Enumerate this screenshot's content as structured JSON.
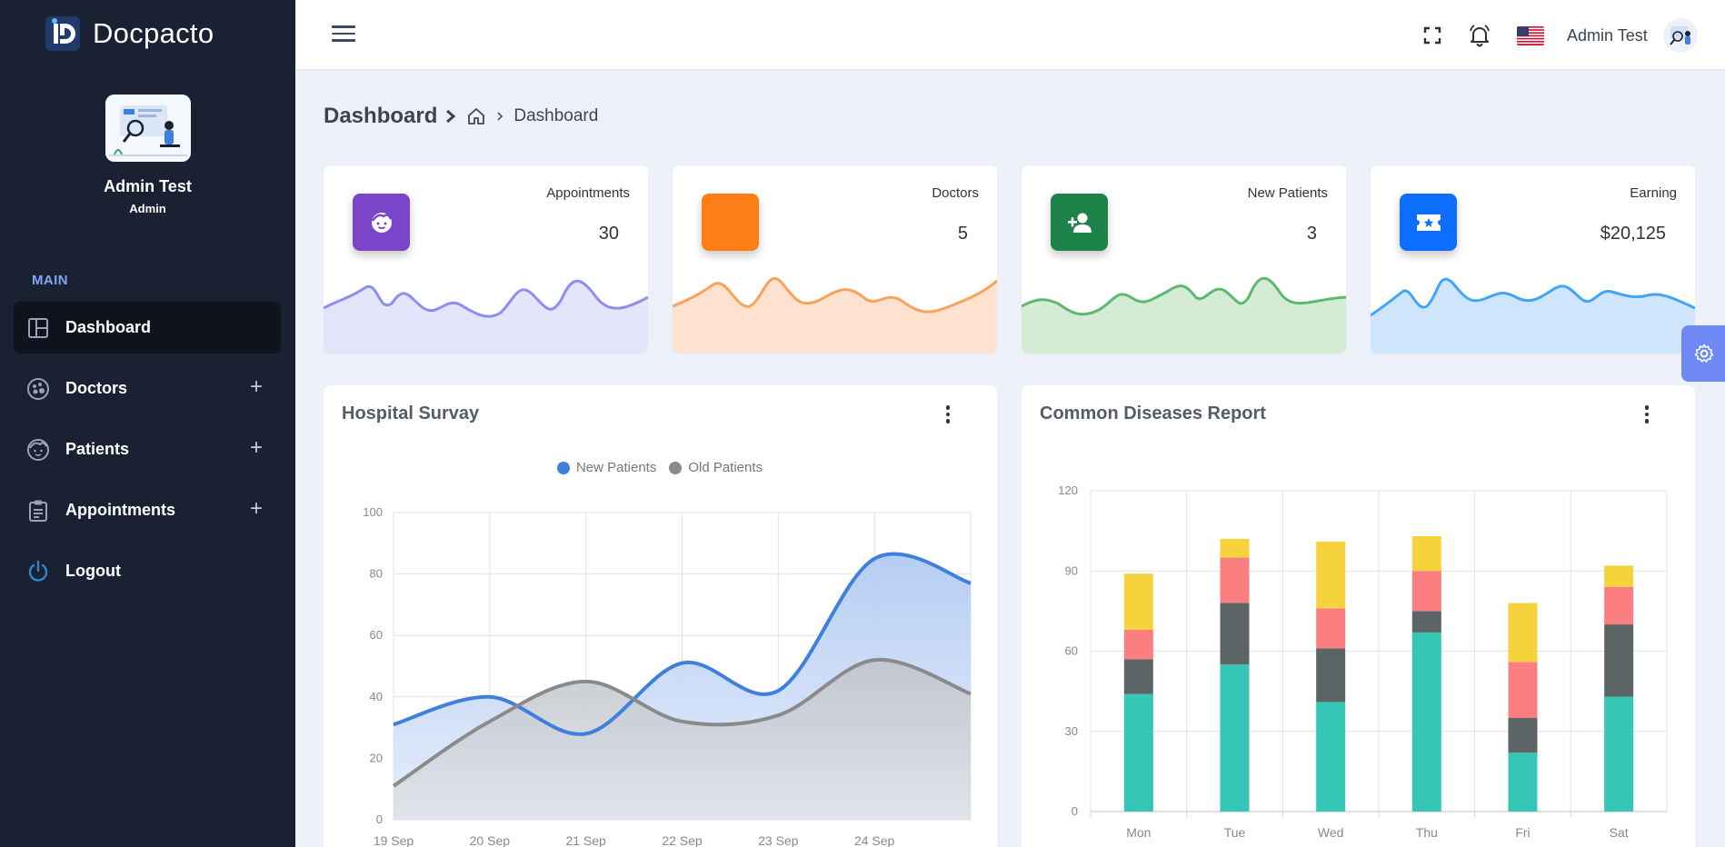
{
  "brand": {
    "name": "Docpacto"
  },
  "profile": {
    "name": "Admin Test",
    "role": "Admin"
  },
  "sidebar": {
    "section": "MAIN",
    "items": [
      {
        "label": "Dashboard",
        "icon": "dashboard-icon",
        "active": true,
        "expandable": false
      },
      {
        "label": "Doctors",
        "icon": "doctor-icon",
        "expandable": true
      },
      {
        "label": "Patients",
        "icon": "patient-face-icon",
        "expandable": true
      },
      {
        "label": "Appointments",
        "icon": "clipboard-icon",
        "expandable": true
      },
      {
        "label": "Logout",
        "icon": "power-icon",
        "expandable": false
      }
    ],
    "expand_symbol": "+"
  },
  "header": {
    "user_name": "Admin Test"
  },
  "breadcrumb": {
    "title": "Dashboard",
    "current": "Dashboard"
  },
  "stats": [
    {
      "label": "Appointments",
      "value": "30",
      "color": "#7b45c9",
      "icon": "face-icon",
      "wave_stroke": "#8d8ef0",
      "wave_fill": "#e4e4fb"
    },
    {
      "label": "Doctors",
      "value": "5",
      "color": "#fd7e14",
      "icon": "",
      "wave_stroke": "#f7a35c",
      "wave_fill": "#fde3cf"
    },
    {
      "label": "New Patients",
      "value": "3",
      "color": "#1d8348",
      "icon": "user-plus-icon",
      "wave_stroke": "#5bba6f",
      "wave_fill": "#d4ecd6"
    },
    {
      "label": "Earning",
      "value": "$20,125",
      "color": "#0d6efd",
      "icon": "ticket-icon",
      "wave_stroke": "#42a5f5",
      "wave_fill": "#cfe5fc"
    }
  ],
  "panels": {
    "survey_title": "Hospital Survay",
    "diseases_title": "Common Diseases Report"
  },
  "chart_data": [
    {
      "type": "area",
      "title": "Hospital Survay",
      "x": [
        "19 Sep",
        "20 Sep",
        "21 Sep",
        "22 Sep",
        "23 Sep",
        "24 Sep",
        ""
      ],
      "series": [
        {
          "name": "New Patients",
          "color": "#3f7fdd",
          "values": [
            31,
            40,
            28,
            51,
            42,
            85,
            77
          ]
        },
        {
          "name": "Old Patients",
          "color": "#8a8a8a",
          "values": [
            11,
            32,
            45,
            32,
            34,
            52,
            41
          ]
        }
      ],
      "ylim": [
        0,
        100
      ],
      "yticks": [
        0,
        20,
        40,
        60,
        80,
        100
      ],
      "grid": true,
      "legend": "top-center"
    },
    {
      "type": "bar",
      "stacked": true,
      "title": "Common Diseases Report",
      "categories": [
        "Mon",
        "Tue",
        "Wed",
        "Thu",
        "Fri",
        "Sat"
      ],
      "series": [
        {
          "color": "#35c6b5",
          "values": [
            44,
            55,
            41,
            67,
            22,
            43
          ]
        },
        {
          "color": "#5c6465",
          "values": [
            13,
            23,
            20,
            8,
            13,
            27
          ]
        },
        {
          "color": "#fb7f80",
          "values": [
            11,
            17,
            15,
            15,
            21,
            14
          ]
        },
        {
          "color": "#f6d23c",
          "values": [
            21,
            7,
            25,
            13,
            22,
            8
          ]
        }
      ],
      "ylim": [
        0,
        120
      ],
      "yticks": [
        0,
        30,
        60,
        90,
        120
      ],
      "grid": true
    }
  ]
}
